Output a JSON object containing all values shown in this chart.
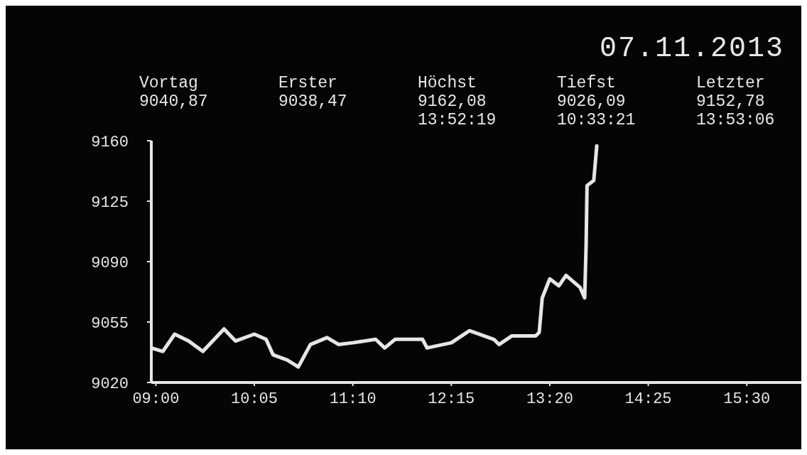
{
  "chart_data": {
    "type": "line",
    "title": "07.11.2013",
    "annotations": [
      "Vortag\n9040,87",
      "Erster\n9038,47",
      "Höchst\n9162,08\n13:52:19",
      "Tiefst\n9026,09\n10:33:21",
      "Letzter\n9152,78\n13:53:06"
    ],
    "x": [
      8.95,
      9.077,
      9.207,
      9.362,
      9.517,
      9.75,
      9.877,
      10.083,
      10.212,
      10.29,
      10.445,
      10.567,
      10.7,
      10.883,
      11.012,
      11.167,
      11.417,
      11.517,
      11.633,
      11.933,
      11.983,
      12.25,
      12.45,
      12.717,
      12.775,
      12.917,
      13.178,
      13.217,
      13.25,
      13.333,
      13.433,
      13.512,
      13.667,
      13.717,
      13.733,
      13.743,
      13.817,
      13.85
    ],
    "series": [
      {
        "color": "#e6e6e6",
        "values": [
          9040,
          9038,
          9048,
          9044,
          9038,
          9051,
          9044,
          9048,
          9045,
          9036,
          9033,
          9029,
          9042,
          9046,
          9042,
          9043,
          9045,
          9040,
          9045,
          9045,
          9040,
          9043,
          9050,
          9045,
          9042,
          9047,
          9047,
          9049,
          9069,
          9080,
          9076,
          9082,
          9075,
          9069,
          9100,
          9134,
          9137,
          9157
        ]
      }
    ],
    "xlim": [
      8.95,
      16.1
    ],
    "ylim": [
      9020,
      9160
    ],
    "xticks": [
      {
        "value": 9,
        "label": "09:00"
      },
      {
        "value": 10.0833,
        "label": "10:05"
      },
      {
        "value": 11.1667,
        "label": "11:10"
      },
      {
        "value": 12.25,
        "label": "12:15"
      },
      {
        "value": 13.3333,
        "label": "13:20"
      },
      {
        "value": 14.4167,
        "label": "14:25"
      },
      {
        "value": 15.5,
        "label": "15:30"
      }
    ],
    "yticks": [
      9020,
      9055,
      9090,
      9125,
      9160
    ],
    "grid": false,
    "legend": false,
    "marker": "none",
    "line_style": "solid"
  }
}
